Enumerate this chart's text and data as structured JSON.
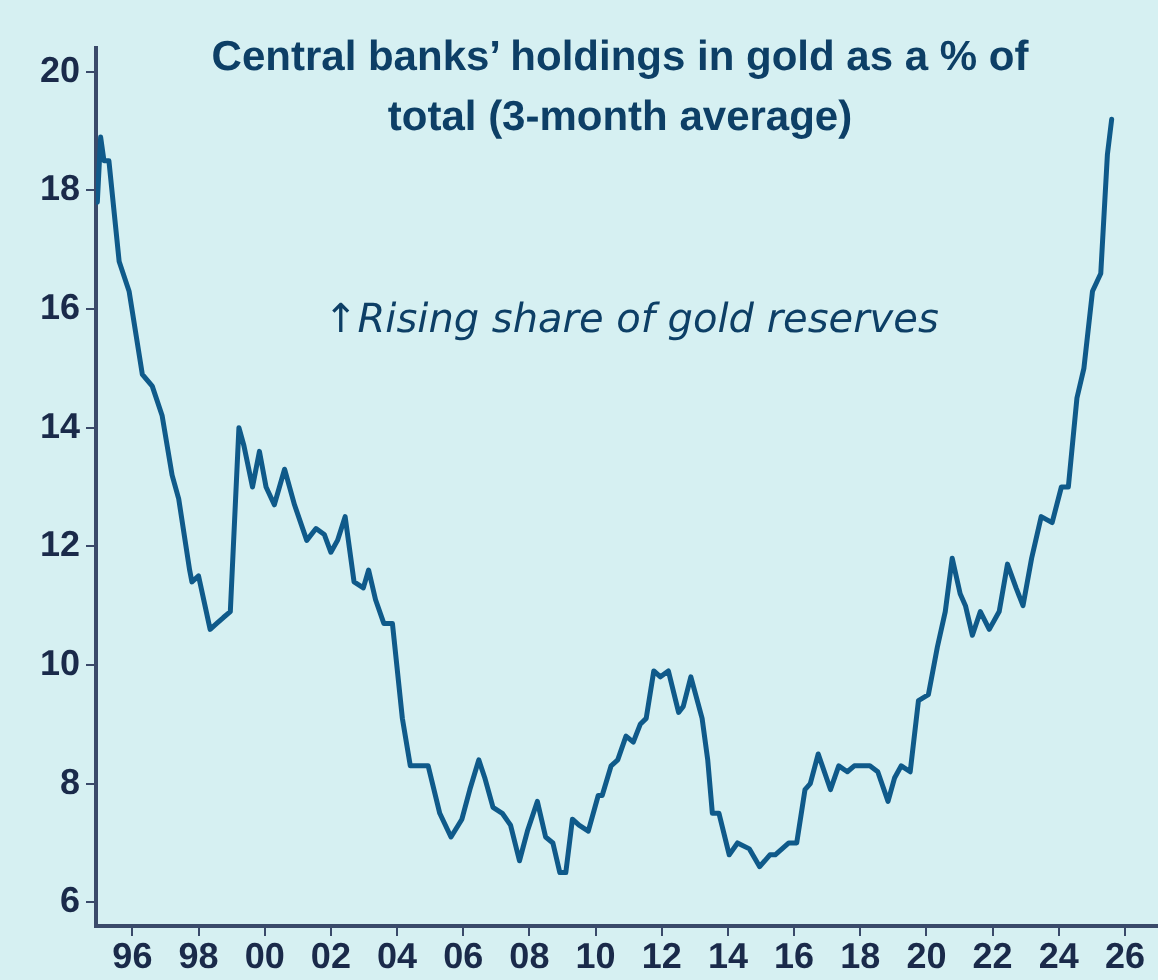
{
  "chart_data": {
    "type": "line",
    "title": "Central banks’ holdings in gold as a % of total (3-month average)",
    "annotations": [
      "↑Rising share of gold reserves"
    ],
    "x": [
      1994.94,
      1995.04,
      1995.14,
      1995.29,
      1995.6,
      1995.9,
      1996.3,
      1996.6,
      1996.9,
      1997.2,
      1997.4,
      1997.73,
      1997.8,
      1998.0,
      1998.35,
      1998.55,
      1998.75,
      1998.96,
      1999.22,
      1999.37,
      1999.63,
      1999.84,
      2000.04,
      2000.29,
      2000.6,
      2000.9,
      2001.27,
      2001.55,
      2001.8,
      2002.0,
      2002.2,
      2002.43,
      2002.7,
      2002.98,
      2003.14,
      2003.35,
      2003.6,
      2003.86,
      2004.16,
      2004.4,
      2004.73,
      2004.94,
      2005.29,
      2005.63,
      2005.96,
      2006.2,
      2006.47,
      2006.65,
      2006.9,
      2007.18,
      2007.43,
      2007.7,
      2007.94,
      2008.24,
      2008.49,
      2008.71,
      2008.92,
      2009.1,
      2009.3,
      2009.5,
      2009.78,
      2010.08,
      2010.2,
      2010.47,
      2010.67,
      2010.92,
      2011.14,
      2011.35,
      2011.53,
      2011.76,
      2011.96,
      2012.2,
      2012.51,
      2012.65,
      2012.88,
      2013.22,
      2013.39,
      2013.53,
      2013.73,
      2014.04,
      2014.29,
      2014.65,
      2014.96,
      2015.27,
      2015.43,
      2015.84,
      2016.08,
      2016.33,
      2016.49,
      2016.73,
      2017.1,
      2017.35,
      2017.61,
      2017.82,
      2018.02,
      2018.29,
      2018.53,
      2018.84,
      2019.04,
      2019.24,
      2019.51,
      2019.76,
      2020.06,
      2020.33,
      2020.57,
      2020.78,
      2021.02,
      2021.18,
      2021.39,
      2021.63,
      2021.9,
      2022.2,
      2022.45,
      2022.71,
      2022.92,
      2023.18,
      2023.47,
      2023.8,
      2024.08,
      2024.29,
      2024.55,
      2024.76,
      2025.02,
      2025.27,
      2025.47,
      2025.6
    ],
    "series": [
      {
        "color": "#0f5a8a",
        "values": [
          17.8,
          18.9,
          18.5,
          18.5,
          16.8,
          16.3,
          14.9,
          14.7,
          14.2,
          13.2,
          12.8,
          11.6,
          11.4,
          11.5,
          10.6,
          10.7,
          10.8,
          10.9,
          14.0,
          13.7,
          13.0,
          13.6,
          13.0,
          12.7,
          13.3,
          12.7,
          12.1,
          12.3,
          12.2,
          11.9,
          12.1,
          12.5,
          11.4,
          11.3,
          11.6,
          11.1,
          10.7,
          10.7,
          9.1,
          8.3,
          8.3,
          8.3,
          7.5,
          7.1,
          7.4,
          7.9,
          8.4,
          8.1,
          7.6,
          7.5,
          7.3,
          6.7,
          7.2,
          7.7,
          7.1,
          7.0,
          6.5,
          6.5,
          7.4,
          7.3,
          7.2,
          7.8,
          7.8,
          8.3,
          8.4,
          8.8,
          8.7,
          9.0,
          9.1,
          9.9,
          9.8,
          9.9,
          9.2,
          9.3,
          9.8,
          9.1,
          8.4,
          7.5,
          7.5,
          6.8,
          7.0,
          6.9,
          6.6,
          6.8,
          6.8,
          7.0,
          7.0,
          7.9,
          8.0,
          8.5,
          7.9,
          8.3,
          8.2,
          8.3,
          8.3,
          8.3,
          8.2,
          7.7,
          8.1,
          8.3,
          8.2,
          9.4,
          9.5,
          10.3,
          10.9,
          11.8,
          11.2,
          11.0,
          10.5,
          10.9,
          10.6,
          10.9,
          11.7,
          11.3,
          11.0,
          11.8,
          12.5,
          12.4,
          13.0,
          13.0,
          14.5,
          15.0,
          16.3,
          16.6,
          18.6,
          19.2
        ]
      }
    ],
    "xlim": [
      1994.9,
      2027
    ],
    "xticks": [
      {
        "value": 1996,
        "label": "96"
      },
      {
        "value": 1998,
        "label": "98"
      },
      {
        "value": 2000,
        "label": "00"
      },
      {
        "value": 2002,
        "label": "02"
      },
      {
        "value": 2004,
        "label": "04"
      },
      {
        "value": 2006,
        "label": "06"
      },
      {
        "value": 2008,
        "label": "08"
      },
      {
        "value": 2010,
        "label": "10"
      },
      {
        "value": 2012,
        "label": "12"
      },
      {
        "value": 2014,
        "label": "14"
      },
      {
        "value": 2016,
        "label": "16"
      },
      {
        "value": 2018,
        "label": "18"
      },
      {
        "value": 2020,
        "label": "20"
      },
      {
        "value": 2022,
        "label": "22"
      },
      {
        "value": 2024,
        "label": "24"
      },
      {
        "value": 2026,
        "label": "26"
      }
    ],
    "ylim": [
      5.6,
      20.4
    ],
    "yticks": [
      6,
      8,
      10,
      12,
      14,
      16,
      18,
      20
    ],
    "grid": false,
    "legend": false,
    "marker": "none",
    "line_style": "solid"
  }
}
